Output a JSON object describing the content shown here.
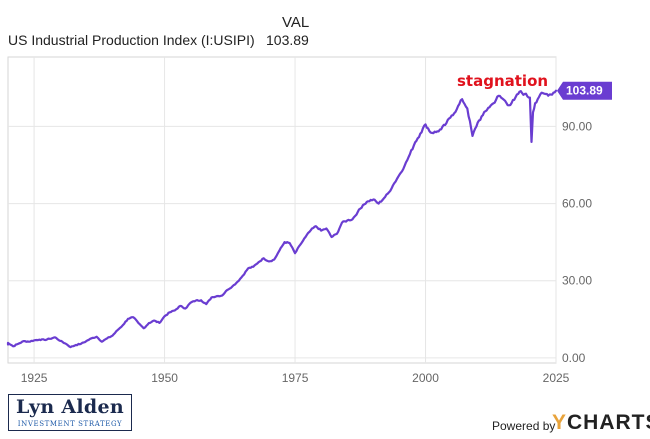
{
  "header": {
    "val_label": "VAL",
    "series_name": "US Industrial Production Index (I:USIPI)",
    "latest_value": "103.89"
  },
  "annotation": {
    "text": "stagnation"
  },
  "branding": {
    "logo_name": "Lyn Alden",
    "logo_subtitle": "INVESTMENT STRATEGY",
    "powered_by": "Powered by",
    "ycharts_y": "Y",
    "ycharts_rest": "CHARTS"
  },
  "colors": {
    "line": "#6a3dd1",
    "annotation": "#e0121d",
    "grid": "#e6e6e6",
    "border": "#d6d6d6"
  },
  "chart_data": {
    "type": "line",
    "title": "",
    "xlabel": "",
    "ylabel": "",
    "xlim": [
      1920,
      2025
    ],
    "ylim": [
      -2,
      117
    ],
    "x_ticks": [
      1925,
      1950,
      1975,
      2000,
      2025
    ],
    "x_tick_labels": [
      "1925",
      "1950",
      "1975",
      "2000",
      "2025"
    ],
    "y_ticks": [
      0,
      30,
      60,
      90
    ],
    "y_tick_labels": [
      "0.00",
      "30.00",
      "60.00",
      "90.00"
    ],
    "grid": true,
    "last_value_label": "103.89",
    "series": [
      {
        "name": "US Industrial Production Index (I:USIPI)",
        "x": [
          1919,
          1920,
          1921,
          1922,
          1923,
          1924,
          1925,
          1926,
          1927,
          1928,
          1929,
          1930,
          1931,
          1932,
          1933,
          1934,
          1935,
          1936,
          1937,
          1938,
          1939,
          1940,
          1941,
          1942,
          1943,
          1944,
          1945,
          1946,
          1947,
          1948,
          1949,
          1950,
          1951,
          1952,
          1953,
          1954,
          1955,
          1956,
          1957,
          1958,
          1959,
          1960,
          1961,
          1962,
          1963,
          1964,
          1965,
          1966,
          1967,
          1968,
          1969,
          1970,
          1971,
          1972,
          1973,
          1974,
          1975,
          1976,
          1977,
          1978,
          1979,
          1980,
          1981,
          1982,
          1983,
          1984,
          1985,
          1986,
          1987,
          1988,
          1989,
          1990,
          1991,
          1992,
          1993,
          1994,
          1995,
          1996,
          1997,
          1998,
          1999,
          2000,
          2001,
          2002,
          2003,
          2004,
          2005,
          2006,
          2007,
          2008,
          2009,
          2010,
          2011,
          2012,
          2013,
          2014,
          2015,
          2016,
          2017,
          2018,
          2019,
          2020.0,
          2020.3,
          2020.6,
          2021,
          2022,
          2023,
          2024,
          2025
        ],
        "values": [
          5.2,
          5.8,
          4.5,
          5.5,
          6.5,
          6.3,
          6.8,
          7.1,
          7.0,
          7.4,
          8.0,
          6.6,
          5.6,
          4.2,
          5.0,
          5.5,
          6.5,
          7.6,
          8.2,
          6.3,
          7.6,
          8.6,
          10.8,
          12.7,
          15.2,
          15.8,
          13.5,
          11.5,
          13.5,
          14.5,
          13.6,
          16.2,
          17.7,
          18.5,
          20.2,
          19.2,
          21.5,
          22.3,
          22.4,
          20.9,
          23.5,
          24.0,
          24.2,
          26.4,
          27.8,
          29.6,
          32.0,
          34.8,
          35.4,
          37.2,
          38.7,
          37.5,
          38.2,
          41.7,
          45.0,
          44.6,
          40.7,
          44.0,
          47.0,
          49.6,
          51.2,
          49.5,
          50.3,
          47.0,
          48.2,
          52.6,
          53.4,
          53.9,
          56.7,
          59.4,
          60.9,
          61.6,
          60.0,
          62.0,
          64.4,
          67.9,
          71.2,
          74.7,
          79.2,
          83.8,
          87.2,
          90.8,
          87.6,
          87.8,
          88.9,
          91.3,
          94.2,
          96.7,
          100.6,
          97.0,
          86.3,
          91.5,
          94.4,
          97.2,
          99.0,
          101.9,
          100.4,
          98.2,
          100.3,
          103.5,
          102.6,
          101.2,
          84.0,
          95.5,
          99.0,
          102.5,
          102.6,
          102.4,
          103.89
        ]
      }
    ]
  }
}
